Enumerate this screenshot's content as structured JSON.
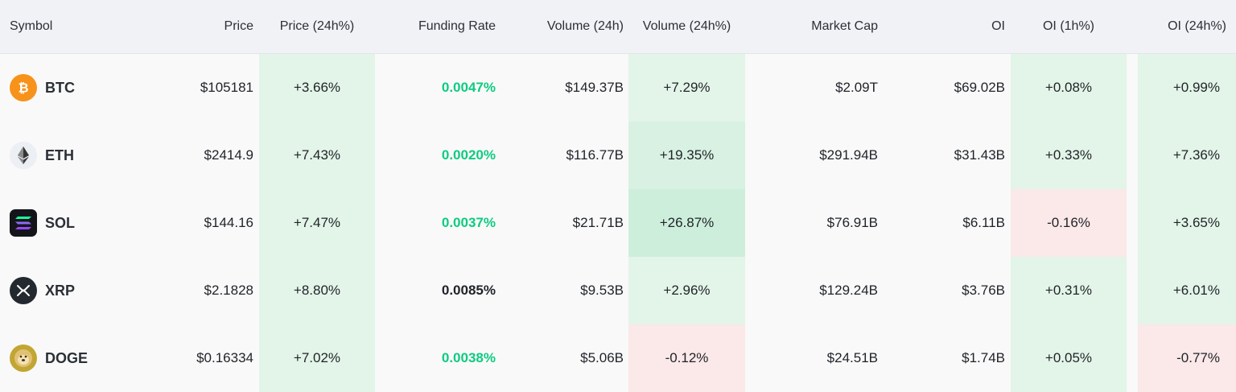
{
  "headers": {
    "symbol": "Symbol",
    "price": "Price",
    "price_24h": "Price (24h%)",
    "funding_rate": "Funding Rate",
    "volume_24h": "Volume (24h)",
    "volume_24h_pct": "Volume (24h%)",
    "market_cap": "Market Cap",
    "oi": "OI",
    "oi_1h": "OI (1h%)",
    "oi_24h": "OI (24h%)"
  },
  "rows": [
    {
      "symbol": "BTC",
      "icon": "bitcoin-icon",
      "price": "$105181",
      "price_24h": "+3.66%",
      "funding_rate": "0.0047%",
      "funding_highlight": true,
      "volume_24h": "$149.37B",
      "volume_24h_pct": "+7.29%",
      "market_cap": "$2.09T",
      "oi": "$69.02B",
      "oi_1h": "+0.08%",
      "oi_24h": "+0.99%"
    },
    {
      "symbol": "ETH",
      "icon": "ethereum-icon",
      "price": "$2414.9",
      "price_24h": "+7.43%",
      "funding_rate": "0.0020%",
      "funding_highlight": true,
      "volume_24h": "$116.77B",
      "volume_24h_pct": "+19.35%",
      "market_cap": "$291.94B",
      "oi": "$31.43B",
      "oi_1h": "+0.33%",
      "oi_24h": "+7.36%"
    },
    {
      "symbol": "SOL",
      "icon": "solana-icon",
      "price": "$144.16",
      "price_24h": "+7.47%",
      "funding_rate": "0.0037%",
      "funding_highlight": true,
      "volume_24h": "$21.71B",
      "volume_24h_pct": "+26.87%",
      "market_cap": "$76.91B",
      "oi": "$6.11B",
      "oi_1h": "-0.16%",
      "oi_24h": "+3.65%"
    },
    {
      "symbol": "XRP",
      "icon": "xrp-icon",
      "price": "$2.1828",
      "price_24h": "+8.80%",
      "funding_rate": "0.0085%",
      "funding_highlight": false,
      "volume_24h": "$9.53B",
      "volume_24h_pct": "+2.96%",
      "market_cap": "$129.24B",
      "oi": "$3.76B",
      "oi_1h": "+0.31%",
      "oi_24h": "+6.01%"
    },
    {
      "symbol": "DOGE",
      "icon": "dogecoin-icon",
      "price": "$0.16334",
      "price_24h": "+7.02%",
      "funding_rate": "0.0038%",
      "funding_highlight": true,
      "volume_24h": "$5.06B",
      "volume_24h_pct": "-0.12%",
      "market_cap": "$24.51B",
      "oi": "$1.74B",
      "oi_1h": "+0.05%",
      "oi_24h": "-0.77%"
    }
  ],
  "colors": {
    "positive_bg": "#e3f4e8",
    "positive_strong_bg": "#cdeedb",
    "negative_bg": "#fbe8e8",
    "funding_green": "#0ecb81",
    "btc": "#f7931a",
    "sol_bg": "#14151a",
    "xrp": "#23292f",
    "doge": "#c2a633"
  }
}
